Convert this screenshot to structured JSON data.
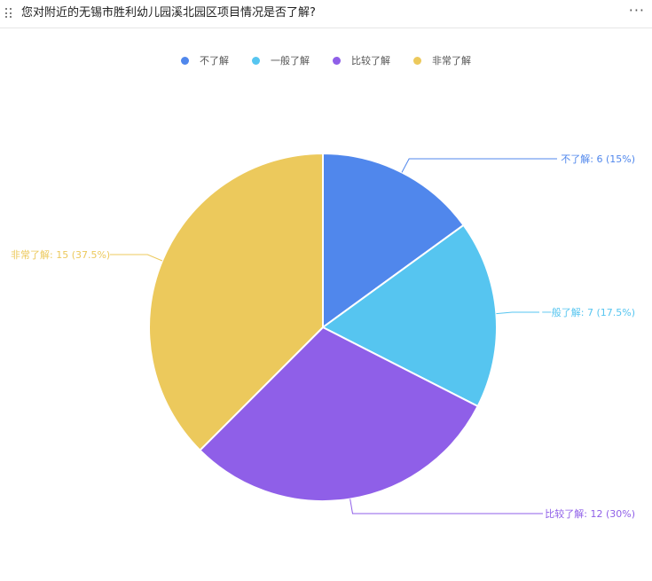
{
  "header": {
    "title": "您对附近的无锡市胜利幼儿园溪北园区项目情况是否了解?",
    "more_label": "···"
  },
  "chart_data": {
    "type": "pie",
    "title": "您对附近的无锡市胜利幼儿园溪北园区项目情况是否了解?",
    "legend_position": "top-center",
    "slices": [
      {
        "name": "不了解",
        "value": 6,
        "percent": "15%",
        "color": "#5087EC",
        "label": "不了解: 6 (15%)"
      },
      {
        "name": "一般了解",
        "value": 7,
        "percent": "17.5%",
        "color": "#56C5F0",
        "label": "一般了解: 7 (17.5%)"
      },
      {
        "name": "比较了解",
        "value": 12,
        "percent": "30%",
        "color": "#8F5FE8",
        "label": "比较了解: 12 (30%)"
      },
      {
        "name": "非常了解",
        "value": 15,
        "percent": "37.5%",
        "color": "#ECC95C",
        "label": "非常了解: 15 (37.5%)"
      }
    ]
  }
}
